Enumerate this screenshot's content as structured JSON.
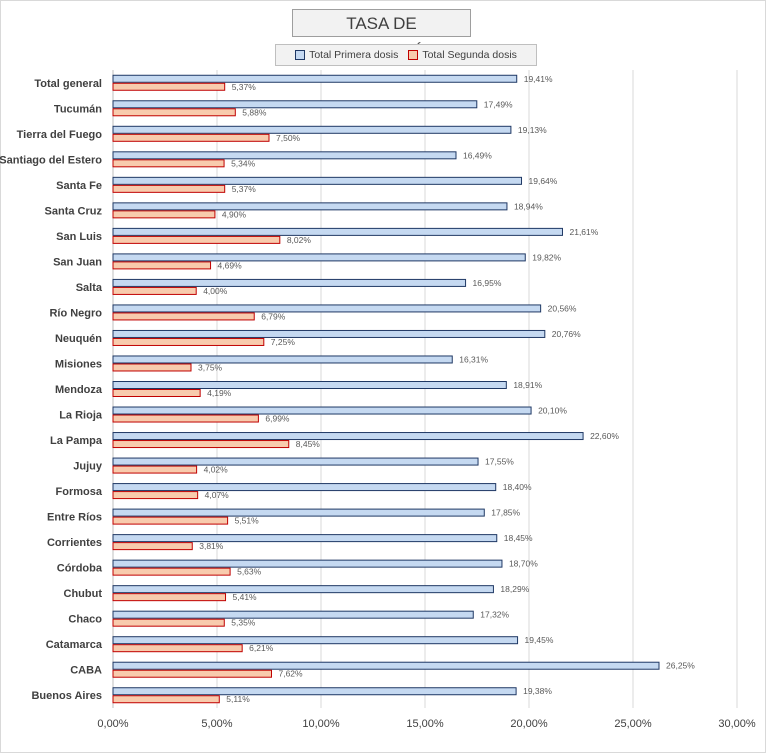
{
  "chart_data": {
    "type": "bar",
    "orientation": "horizontal",
    "title": "TASA DE VACUNACIÓN",
    "categories": [
      "Total general",
      "Tucumán",
      "Tierra del Fuego",
      "Santiago del Estero",
      "Santa Fe",
      "Santa Cruz",
      "San Luis",
      "San Juan",
      "Salta",
      "Río Negro",
      "Neuquén",
      "Misiones",
      "Mendoza",
      "La Rioja",
      "La Pampa",
      "Jujuy",
      "Formosa",
      "Entre Ríos",
      "Corrientes",
      "Córdoba",
      "Chubut",
      "Chaco",
      "Catamarca",
      "CABA",
      "Buenos Aires"
    ],
    "series": [
      {
        "name": "Total Primera dosis",
        "color": "#c5d9f1",
        "stroke": "#1f3864",
        "values": [
          19.41,
          17.49,
          19.13,
          16.49,
          19.64,
          18.94,
          21.61,
          19.82,
          16.95,
          20.56,
          20.76,
          16.31,
          18.91,
          20.1,
          22.6,
          17.55,
          18.4,
          17.85,
          18.45,
          18.7,
          18.29,
          17.32,
          19.45,
          26.25,
          19.38
        ],
        "labels": [
          "19,41%",
          "17,49%",
          "19,13%",
          "16,49%",
          "19,64%",
          "18,94%",
          "21,61%",
          "19,82%",
          "16,95%",
          "20,56%",
          "20,76%",
          "16,31%",
          "18,91%",
          "20,10%",
          "22,60%",
          "17,55%",
          "18,40%",
          "17,85%",
          "18,45%",
          "18,70%",
          "18,29%",
          "17,32%",
          "19,45%",
          "26,25%",
          "19,38%"
        ]
      },
      {
        "name": "Total Segunda dosis",
        "color": "#f8cbad",
        "stroke": "#c00000",
        "values": [
          5.37,
          5.88,
          7.5,
          5.34,
          5.37,
          4.9,
          8.02,
          4.69,
          4.0,
          6.79,
          7.25,
          3.75,
          4.19,
          6.99,
          8.45,
          4.02,
          4.07,
          5.51,
          3.81,
          5.63,
          5.41,
          5.35,
          6.21,
          7.62,
          5.11
        ],
        "labels": [
          "5,37%",
          "5,88%",
          "7,50%",
          "5,34%",
          "5,37%",
          "4,90%",
          "8,02%",
          "4,69%",
          "4,00%",
          "6,79%",
          "7,25%",
          "3,75%",
          "4,19%",
          "6,99%",
          "8,45%",
          "4,02%",
          "4,07%",
          "5,51%",
          "3,81%",
          "5,63%",
          "5,41%",
          "5,35%",
          "6,21%",
          "7,62%",
          "5,11%"
        ]
      }
    ],
    "xlim": [
      0,
      30
    ],
    "xticks": [
      0,
      5,
      10,
      15,
      20,
      25,
      30
    ],
    "xtick_labels": [
      "0,00%",
      "5,00%",
      "10,00%",
      "15,00%",
      "20,00%",
      "25,00%",
      "30,00%"
    ],
    "grid": true,
    "legend_position": "top"
  }
}
